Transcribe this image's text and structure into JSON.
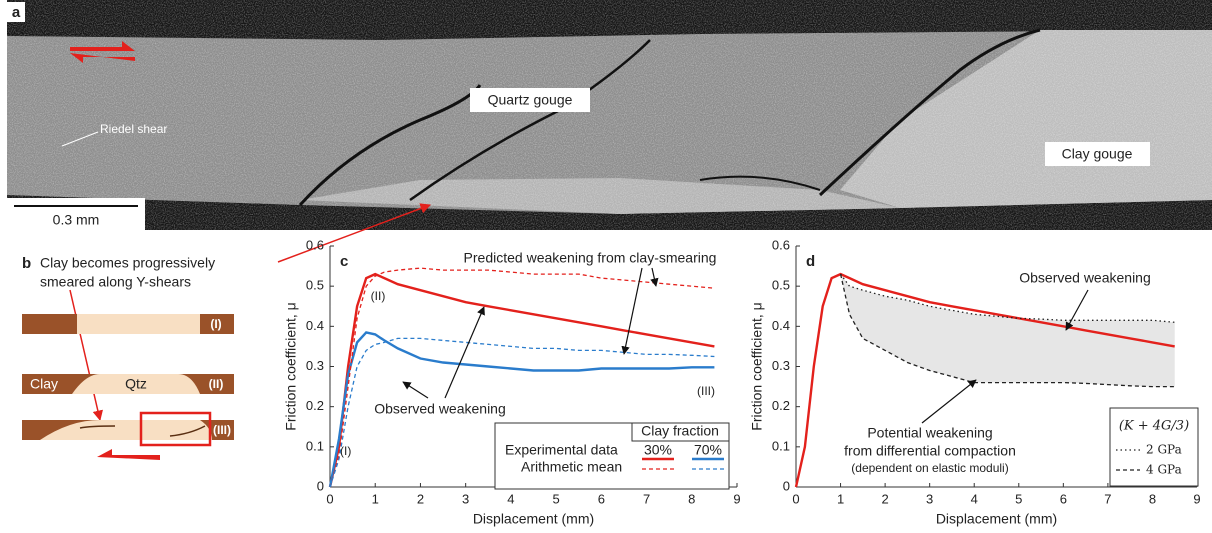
{
  "panel_a": {
    "label": "a",
    "labels": [
      "Quartz gouge",
      "Clay gouge",
      "Riedel shear"
    ],
    "scale_bar": "0.3 mm"
  },
  "panel_b": {
    "label": "b",
    "caption": [
      "Clay becomes progressively",
      "smeared along Y-shears"
    ],
    "materials": [
      "Clay",
      "Qtz"
    ],
    "stages": [
      "(I)",
      "(II)",
      "(III)"
    ]
  },
  "chart_data": [
    {
      "type": "line",
      "panel": "c",
      "xlabel": "Displacement (mm)",
      "ylabel": "Friction coefficient, μ",
      "xlim": [
        0,
        9
      ],
      "ylim": [
        0,
        0.6
      ],
      "xticks": [
        0,
        1,
        2,
        3,
        4,
        5,
        6,
        7,
        8,
        9
      ],
      "yticks": [
        0,
        0.1,
        0.2,
        0.3,
        0.4,
        0.5,
        0.6
      ],
      "x": [
        0,
        0.2,
        0.4,
        0.6,
        0.8,
        1,
        1.2,
        1.5,
        2,
        2.5,
        3,
        3.5,
        4,
        4.5,
        5,
        5.5,
        6,
        6.5,
        7,
        7.5,
        8,
        8.5
      ],
      "series": [
        {
          "color": "#e3211c",
          "style": "solid",
          "values": [
            0,
            0.1,
            0.3,
            0.45,
            0.52,
            0.53,
            0.52,
            0.505,
            0.49,
            0.475,
            0.46,
            0.45,
            0.44,
            0.43,
            0.42,
            0.41,
            0.4,
            0.39,
            0.38,
            0.37,
            0.36,
            0.35
          ]
        },
        {
          "color": "#2a7ccc",
          "style": "solid",
          "values": [
            0,
            0.12,
            0.28,
            0.36,
            0.385,
            0.38,
            0.365,
            0.345,
            0.32,
            0.31,
            0.305,
            0.3,
            0.295,
            0.29,
            0.29,
            0.29,
            0.295,
            0.295,
            0.295,
            0.295,
            0.298,
            0.298
          ]
        },
        {
          "color": "#e3211c",
          "style": "dashed",
          "values": [
            0,
            0.08,
            0.25,
            0.42,
            0.5,
            0.525,
            0.535,
            0.54,
            0.545,
            0.54,
            0.54,
            0.54,
            0.535,
            0.53,
            0.53,
            0.53,
            0.52,
            0.515,
            0.51,
            0.505,
            0.5,
            0.495
          ]
        },
        {
          "color": "#2a7ccc",
          "style": "dashed",
          "values": [
            0,
            0.07,
            0.2,
            0.3,
            0.34,
            0.355,
            0.36,
            0.37,
            0.37,
            0.365,
            0.36,
            0.355,
            0.35,
            0.345,
            0.345,
            0.34,
            0.34,
            0.335,
            0.33,
            0.33,
            0.328,
            0.325
          ]
        }
      ],
      "legend": {
        "title": "Clay fraction",
        "columns": [
          "30%",
          "70%"
        ],
        "rows": [
          "Experimental data",
          "Arithmetic mean"
        ]
      },
      "annotations": [
        "Predicted weakening from clay-smearing",
        "Observed weakening",
        "(I)",
        "(II)",
        "(III)"
      ]
    },
    {
      "type": "line",
      "panel": "d",
      "xlabel": "Displacement (mm)",
      "ylabel": "Friction coefficient, μ",
      "xlim": [
        0,
        9
      ],
      "ylim": [
        0,
        0.6
      ],
      "xticks": [
        0,
        1,
        2,
        3,
        4,
        5,
        6,
        7,
        8,
        9
      ],
      "yticks": [
        0,
        0.1,
        0.2,
        0.3,
        0.4,
        0.5,
        0.6
      ],
      "x": [
        0,
        0.2,
        0.4,
        0.6,
        0.8,
        1,
        1.2,
        1.5,
        2,
        2.5,
        3,
        3.5,
        4,
        4.5,
        5,
        5.5,
        6,
        6.5,
        7,
        7.5,
        8,
        8.5
      ],
      "series": [
        {
          "color": "#e3211c",
          "style": "solid",
          "values": [
            0,
            0.1,
            0.3,
            0.45,
            0.52,
            0.53,
            0.52,
            0.505,
            0.49,
            0.475,
            0.46,
            0.45,
            0.44,
            0.43,
            0.42,
            0.41,
            0.4,
            0.39,
            0.38,
            0.37,
            0.36,
            0.35
          ]
        },
        {
          "name": "2 GPa",
          "color": "#222222",
          "style": "dotted",
          "values": [
            null,
            null,
            null,
            null,
            null,
            0.53,
            0.5,
            0.49,
            0.475,
            0.465,
            0.45,
            0.44,
            0.43,
            0.425,
            0.42,
            0.418,
            0.415,
            0.415,
            0.415,
            0.415,
            0.415,
            0.41
          ]
        },
        {
          "name": "4 GPa",
          "color": "#222222",
          "style": "dashed",
          "values": [
            null,
            null,
            null,
            null,
            null,
            0.53,
            0.43,
            0.37,
            0.34,
            0.31,
            0.29,
            0.275,
            0.26,
            0.26,
            0.26,
            0.26,
            0.26,
            0.258,
            0.255,
            0.252,
            0.25,
            0.25
          ]
        }
      ],
      "legend_title": "(K + 4G/3)",
      "annotations": [
        "Observed weakening",
        "Potential weakening",
        "from differential compaction",
        "(dependent on elastic moduli)"
      ]
    }
  ]
}
